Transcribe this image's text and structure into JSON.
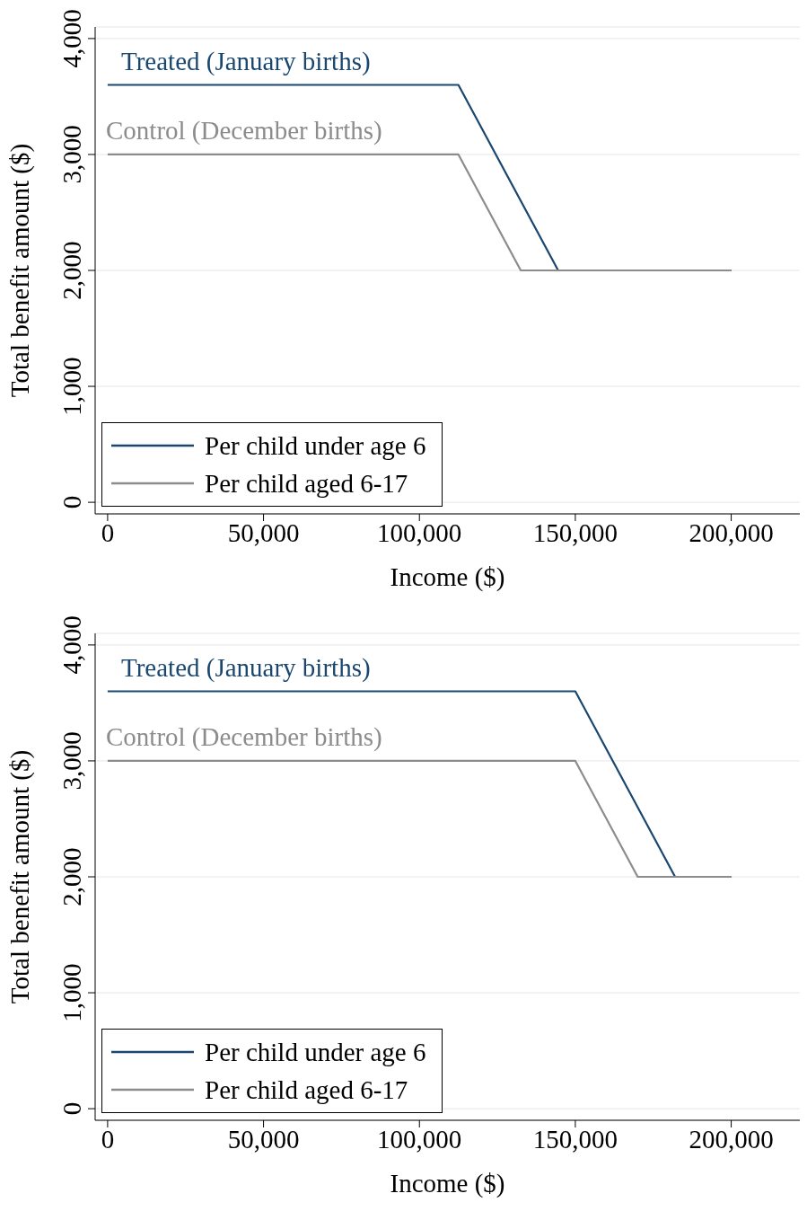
{
  "chart_data": [
    {
      "type": "line",
      "xlabel": "Income ($)",
      "ylabel": "Total benefit amount ($)",
      "xlim": [
        -4000,
        222000
      ],
      "xticks": [
        {
          "value": 0,
          "label": "0"
        },
        {
          "value": 50000,
          "label": "50,000"
        },
        {
          "value": 100000,
          "label": "100,000"
        },
        {
          "value": 150000,
          "label": "150,000"
        },
        {
          "value": 200000,
          "label": "200,000"
        }
      ],
      "ylim": [
        -100,
        4100
      ],
      "yticks": [
        {
          "value": 0,
          "label": "0"
        },
        {
          "value": 1000,
          "label": "1,000"
        },
        {
          "value": 2000,
          "label": "2,000"
        },
        {
          "value": 3000,
          "label": "3,000"
        },
        {
          "value": 4000,
          "label": "4,000"
        }
      ],
      "grid": "y",
      "legend": "bottom left",
      "line_style": "solid",
      "marker": "none",
      "series": [
        {
          "name": "Per child under age 6",
          "color": "#1a476f",
          "x": [
            0,
            112500,
            144500,
            200000
          ],
          "values": [
            3600,
            3600,
            2000,
            2000
          ]
        },
        {
          "name": "Per child aged 6-17",
          "color": "#8c8c8c",
          "x": [
            0,
            112500,
            132500,
            200000
          ],
          "values": [
            3000,
            3000,
            2000,
            2000
          ]
        }
      ],
      "annotations": [
        "Treated (January births)",
        "Control (December births)"
      ]
    },
    {
      "type": "line",
      "xlabel": "Income ($)",
      "ylabel": "Total benefit amount ($)",
      "xlim": [
        -4000,
        222000
      ],
      "xticks": [
        {
          "value": 0,
          "label": "0"
        },
        {
          "value": 50000,
          "label": "50,000"
        },
        {
          "value": 100000,
          "label": "100,000"
        },
        {
          "value": 150000,
          "label": "150,000"
        },
        {
          "value": 200000,
          "label": "200,000"
        }
      ],
      "ylim": [
        -100,
        4100
      ],
      "yticks": [
        {
          "value": 0,
          "label": "0"
        },
        {
          "value": 1000,
          "label": "1,000"
        },
        {
          "value": 2000,
          "label": "2,000"
        },
        {
          "value": 3000,
          "label": "3,000"
        },
        {
          "value": 4000,
          "label": "4,000"
        }
      ],
      "grid": "y",
      "legend": "bottom left",
      "line_style": "solid",
      "marker": "none",
      "series": [
        {
          "name": "Per child under age 6",
          "color": "#1a476f",
          "x": [
            0,
            150000,
            182000,
            200000
          ],
          "values": [
            3600,
            3600,
            2000,
            2000
          ]
        },
        {
          "name": "Per child aged 6-17",
          "color": "#8c8c8c",
          "x": [
            0,
            150000,
            170000,
            200000
          ],
          "values": [
            3000,
            3000,
            2000,
            2000
          ]
        }
      ],
      "annotations": [
        "Treated (January births)",
        "Control (December births)"
      ]
    }
  ]
}
